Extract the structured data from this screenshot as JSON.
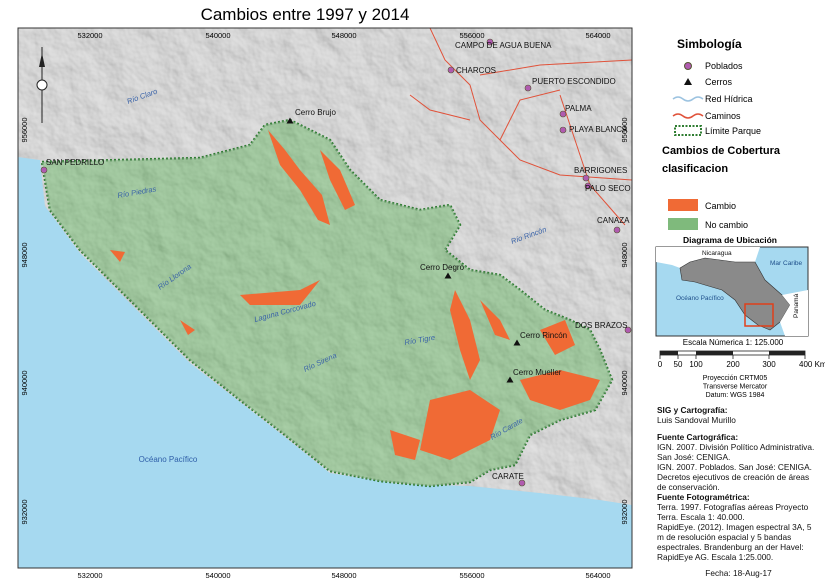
{
  "title": "Cambios entre 1997 y 2014",
  "map": {
    "coords_x": [
      "532000",
      "540000",
      "548000",
      "556000",
      "564000"
    ],
    "coords_y": [
      "956000",
      "948000",
      "940000",
      "932000"
    ],
    "places": [
      "CAMPO DE AGUA BUENA",
      "CHARCOS",
      "PUERTO ESCONDIDO",
      "PALMA",
      "PLAYA BLANCA",
      "BARRIGONES",
      "PALO SECO",
      "CANAZA",
      "DOS BRAZOS",
      "CARATE",
      "SAN PEDRILLO"
    ],
    "peaks": [
      "Cerro Brujo",
      "Cerro Degro",
      "Cerro Rincón",
      "Cerro Mueller"
    ],
    "rivers": [
      "Río Claro",
      "Río Piedras",
      "Río Llorona",
      "Laguna Corcovado",
      "Río Sirena",
      "Río Tigre",
      "Río Rincón",
      "Río Carate"
    ],
    "sea_label": "Océano Pacífico"
  },
  "legend": {
    "title": "Simbología",
    "items": [
      "Poblados",
      "Cerros",
      "Red Hídrica",
      "Caminos",
      "Límite Parque"
    ],
    "coverage_title": "Cambios de Cobertura",
    "coverage_subtitle": "clasificacion",
    "coverage_items": [
      "Cambio",
      "No cambio"
    ]
  },
  "inset": {
    "title": "Diagrama de Ubicación",
    "labels": [
      "Nicaragua",
      "Mar Caribe",
      "Océano Pacífico",
      "Panamá"
    ]
  },
  "scale": {
    "text": "Escala Númerica 1: 125.000",
    "ticks": [
      "0",
      "50",
      "100",
      "200",
      "300",
      "400 Km"
    ]
  },
  "projection": [
    "Proyección CRTM05",
    "Transverse Mercator",
    "Datum: WGS 1984"
  ],
  "credits": {
    "sig_title": "SIG y Cartografía:",
    "sig_author": "Luis Sandoval Murillo",
    "carto_title": "Fuente Cartográfica:",
    "carto_lines": [
      "IGN. 2007. División Político Administrativa. San José: CENIGA.",
      "IGN. 2007. Poblados. San José: CENIGA.",
      "Decretos ejecutivos de creación de áreas de conservación."
    ],
    "photo_title": "Fuente Fotogramétrica:",
    "photo_lines": [
      "Terra. 1997. Fotografías aéreas Proyecto Terra. Escala 1: 40.000.",
      "RapidEye. (2012). Imagen espectral 3A, 5 m de resolución espacial y 5 bandas espectrales. Brandenburg an der Havel: RapidEye AG. Escala 1:25.000."
    ],
    "date": "Fecha: 18-Aug-17"
  }
}
